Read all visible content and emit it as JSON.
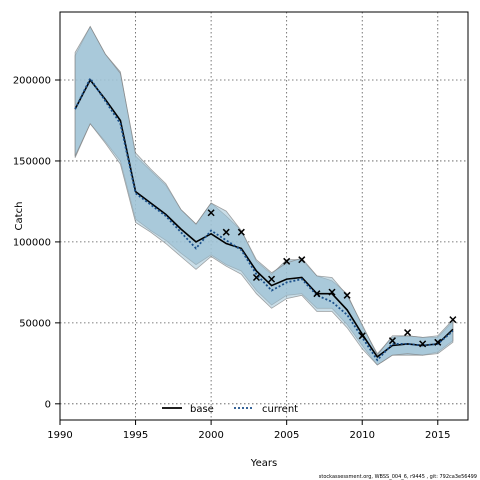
{
  "chart_data": {
    "type": "line",
    "xlabel": "Years",
    "ylabel": "Catch",
    "xlim": [
      1990,
      2017
    ],
    "ylim": [
      -10000,
      242000
    ],
    "xticks": [
      1990,
      1995,
      2000,
      2005,
      2010,
      2015
    ],
    "yticks": [
      0,
      50000,
      100000,
      150000,
      200000
    ],
    "grid": true,
    "legend": {
      "placement": "bottom-left",
      "entries": [
        {
          "name": "base",
          "style": "solid",
          "color": "#000000"
        },
        {
          "name": "current",
          "style": "dotted",
          "color": "#1a4f8a"
        }
      ]
    },
    "x": [
      1991,
      1992,
      1993,
      1994,
      1995,
      1996,
      1997,
      1998,
      1999,
      2000,
      2001,
      2002,
      2003,
      2004,
      2005,
      2006,
      2007,
      2008,
      2009,
      2010,
      2011,
      2012,
      2013,
      2014,
      2015,
      2016
    ],
    "series": [
      {
        "name": "base",
        "values": [
          182000,
          200000,
          188000,
          175000,
          131000,
          124000,
          117000,
          108000,
          100000,
          105000,
          99000,
          96000,
          82000,
          73000,
          77000,
          78000,
          68000,
          68000,
          58000,
          43000,
          29000,
          36000,
          37000,
          36000,
          37000,
          46000
        ],
        "band_upper": [
          215000,
          233000,
          216000,
          205000,
          153000,
          144000,
          135000,
          120000,
          111000,
          124000,
          116000,
          107000,
          88000,
          80000,
          89000,
          89000,
          79000,
          76000,
          68000,
          48000,
          31000,
          41000,
          42000,
          41000,
          41000,
          51000
        ],
        "band_lower": [
          152000,
          173000,
          162000,
          150000,
          114000,
          107000,
          101000,
          93000,
          86000,
          92000,
          86000,
          82000,
          70000,
          61000,
          67000,
          68000,
          59000,
          59000,
          49000,
          36000,
          24000,
          30000,
          30000,
          30000,
          32000,
          39000
        ]
      },
      {
        "name": "current",
        "values": [
          182000,
          201000,
          187000,
          173000,
          130000,
          123000,
          116000,
          106000,
          96000,
          107000,
          101000,
          95000,
          80000,
          70000,
          75000,
          77000,
          67000,
          63000,
          55000,
          41000,
          27000,
          37000,
          37000,
          36000,
          37000,
          45000
        ],
        "band_upper": [
          217000,
          233000,
          216000,
          204000,
          155000,
          145000,
          136000,
          120000,
          111000,
          124000,
          119000,
          107000,
          89000,
          81000,
          87000,
          90000,
          79000,
          78000,
          67000,
          49000,
          30000,
          42000,
          42000,
          41000,
          42000,
          52000
        ],
        "band_lower": [
          153000,
          173000,
          161000,
          148000,
          112000,
          106000,
          99000,
          91000,
          83000,
          91000,
          85000,
          80000,
          68000,
          59000,
          65000,
          67000,
          57000,
          57000,
          47000,
          34000,
          24000,
          30000,
          31000,
          30000,
          31000,
          38000
        ]
      },
      {
        "name": "observed",
        "marker": "x",
        "x": [
          2000,
          2001,
          2002,
          2003,
          2004,
          2005,
          2006,
          2007,
          2008,
          2009,
          2010,
          2012,
          2013,
          2014,
          2015,
          2016
        ],
        "values": [
          118000,
          106000,
          106000,
          78000,
          77000,
          88000,
          89000,
          68000,
          69000,
          67000,
          42000,
          39000,
          44000,
          37000,
          38000,
          52000
        ]
      }
    ],
    "colors": {
      "band": "#9fc2d6",
      "band_edge": "#808080",
      "base_line": "#000000",
      "current_line": "#1a4f8a",
      "grid": "#555555"
    }
  },
  "footer": {
    "note": "stockassessment.org, WBSS_004_6, r9445 , git: 792ca3e56499"
  }
}
